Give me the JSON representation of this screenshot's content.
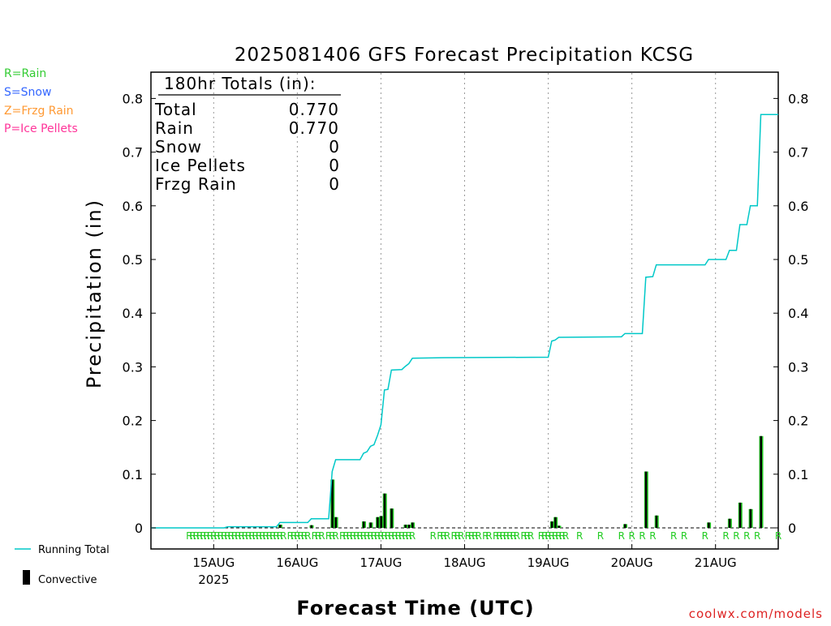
{
  "title": "2025081406 GFS Forecast Precipitation KCSG",
  "legend_types": [
    {
      "text": "R=Rain",
      "color": "#33cc33"
    },
    {
      "text": "S=Snow",
      "color": "#3366ff"
    },
    {
      "text": "Z=Frzg Rain",
      "color": "#ff9933"
    },
    {
      "text": "P=Ice Pellets",
      "color": "#ff3399"
    }
  ],
  "totals_box": {
    "header": "180hr Totals (in):",
    "rows": [
      {
        "label": "Total",
        "value": "0.770"
      },
      {
        "label": "Rain",
        "value": "0.770"
      },
      {
        "label": "Snow",
        "value": "0"
      },
      {
        "label": "Ice Pellets",
        "value": "0"
      },
      {
        "label": "Frzg Rain",
        "value": "0"
      }
    ]
  },
  "legend_bottom": {
    "running_total": "Running Total",
    "convective": "Convective"
  },
  "colors": {
    "running_total": "#00c8c8",
    "precip_bar": "#22cc22",
    "convective_bar": "#000000",
    "rain_marker": "#22cc22",
    "grid": "#999999"
  },
  "footer": "coolwx.com/models",
  "chart_data": {
    "type": "bar+line",
    "xlabel": "Forecast Time (UTC)",
    "ylabel": "Precipitation (in)",
    "ylim": [
      0,
      0.85
    ],
    "yticks": [
      "0",
      "0.1",
      "0.2",
      "0.3",
      "0.4",
      "0.5",
      "0.6",
      "0.7",
      "0.8"
    ],
    "xlim_hours": [
      0,
      180
    ],
    "xticks": [
      {
        "hour": 18,
        "label": "15AUG",
        "sub": "2025"
      },
      {
        "hour": 42,
        "label": "16AUG",
        "sub": ""
      },
      {
        "hour": 66,
        "label": "17AUG",
        "sub": ""
      },
      {
        "hour": 90,
        "label": "18AUG",
        "sub": ""
      },
      {
        "hour": 114,
        "label": "19AUG",
        "sub": ""
      },
      {
        "hour": 138,
        "label": "20AUG",
        "sub": ""
      },
      {
        "hour": 162,
        "label": "21AUG",
        "sub": ""
      }
    ],
    "grid": "vertical dotted at day boundaries",
    "running_total": [
      [
        0,
        0
      ],
      [
        21,
        0
      ],
      [
        22,
        0.002
      ],
      [
        36,
        0.002
      ],
      [
        37,
        0.01
      ],
      [
        45,
        0.01
      ],
      [
        46,
        0.017
      ],
      [
        51,
        0.017
      ],
      [
        52,
        0.105
      ],
      [
        53,
        0.127
      ],
      [
        60,
        0.127
      ],
      [
        61,
        0.139
      ],
      [
        62,
        0.142
      ],
      [
        63,
        0.152
      ],
      [
        64,
        0.155
      ],
      [
        65,
        0.172
      ],
      [
        66,
        0.192
      ],
      [
        67,
        0.257
      ],
      [
        68,
        0.258
      ],
      [
        69,
        0.294
      ],
      [
        72,
        0.295
      ],
      [
        73,
        0.301
      ],
      [
        74,
        0.306
      ],
      [
        75,
        0.316
      ],
      [
        84,
        0.317
      ],
      [
        114,
        0.318
      ],
      [
        115,
        0.348
      ],
      [
        116,
        0.35
      ],
      [
        117,
        0.355
      ],
      [
        135,
        0.356
      ],
      [
        136,
        0.362
      ],
      [
        141,
        0.362
      ],
      [
        142,
        0.467
      ],
      [
        144,
        0.468
      ],
      [
        145,
        0.49
      ],
      [
        159,
        0.49
      ],
      [
        160,
        0.5
      ],
      [
        165,
        0.5
      ],
      [
        166,
        0.517
      ],
      [
        168,
        0.517
      ],
      [
        169,
        0.565
      ],
      [
        171,
        0.565
      ],
      [
        172,
        0.6
      ],
      [
        174,
        0.6
      ],
      [
        175,
        0.77
      ],
      [
        180,
        0.77
      ]
    ],
    "precip_bars": [
      {
        "hour": 37,
        "value": 0.006
      },
      {
        "hour": 46,
        "value": 0.005
      },
      {
        "hour": 52,
        "value": 0.09
      },
      {
        "hour": 53,
        "value": 0.02
      },
      {
        "hour": 61,
        "value": 0.012
      },
      {
        "hour": 63,
        "value": 0.01
      },
      {
        "hour": 65,
        "value": 0.02
      },
      {
        "hour": 66,
        "value": 0.022
      },
      {
        "hour": 67,
        "value": 0.064
      },
      {
        "hour": 69,
        "value": 0.036
      },
      {
        "hour": 73,
        "value": 0.006
      },
      {
        "hour": 74,
        "value": 0.006
      },
      {
        "hour": 75,
        "value": 0.01
      },
      {
        "hour": 115,
        "value": 0.012
      },
      {
        "hour": 116,
        "value": 0.02
      },
      {
        "hour": 117,
        "value": 0.004
      },
      {
        "hour": 136,
        "value": 0.007
      },
      {
        "hour": 142,
        "value": 0.105
      },
      {
        "hour": 145,
        "value": 0.023
      },
      {
        "hour": 160,
        "value": 0.01
      },
      {
        "hour": 166,
        "value": 0.017
      },
      {
        "hour": 169,
        "value": 0.047
      },
      {
        "hour": 172,
        "value": 0.035
      },
      {
        "hour": 175,
        "value": 0.171
      }
    ],
    "rain_markers": {
      "text": "R",
      "hours": [
        11,
        12,
        13,
        14,
        15,
        16,
        17,
        18,
        19,
        20,
        21,
        22,
        23,
        24,
        25,
        26,
        27,
        28,
        29,
        30,
        31,
        32,
        33,
        34,
        35,
        36,
        37,
        38,
        40,
        41,
        42,
        43,
        44,
        45,
        47,
        48,
        49,
        51,
        52,
        53,
        55,
        56,
        57,
        58,
        59,
        60,
        61,
        62,
        63,
        64,
        65,
        66,
        67,
        68,
        69,
        70,
        71,
        72,
        73,
        74,
        75,
        81,
        83,
        84,
        85,
        87,
        88,
        89,
        91,
        92,
        93,
        94,
        96,
        97,
        99,
        100,
        101,
        102,
        103,
        104,
        105,
        107,
        108,
        109,
        112,
        113,
        114,
        115,
        116,
        117,
        118,
        119,
        123,
        129,
        135,
        138,
        141,
        144,
        150,
        153,
        159,
        165,
        168,
        171,
        174,
        180
      ]
    }
  }
}
